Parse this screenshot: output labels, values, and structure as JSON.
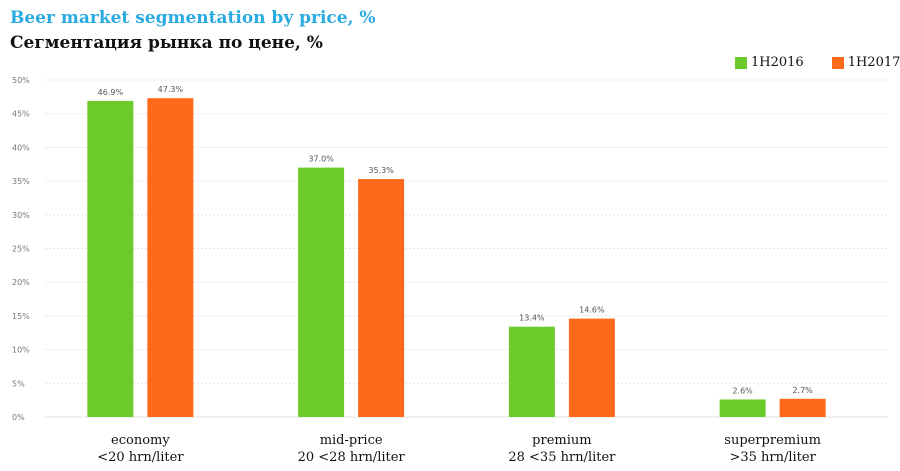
{
  "chart_data": {
    "type": "bar",
    "title": "Beer market segmentation by price, %",
    "subtitle": "Сегментация рынка по цене, %",
    "categories": [
      [
        "economy",
        "<20 hrn/liter"
      ],
      [
        "mid-price",
        "20 <28 hrn/liter"
      ],
      [
        "premium",
        "28 <35 hrn/liter"
      ],
      [
        "superpremium",
        ">35 hrn/liter"
      ]
    ],
    "series": [
      {
        "name": "1H2016",
        "color": "#6ccb2b",
        "values": [
          46.9,
          37.0,
          13.4,
          2.6
        ],
        "labels": [
          "46.9%",
          "37.0%",
          "13.4%",
          "2.6%"
        ]
      },
      {
        "name": "1H2017",
        "color": "#ff6a1a",
        "values": [
          47.3,
          35.3,
          14.6,
          2.7
        ],
        "labels": [
          "47.3%",
          "35.3%",
          "14.6%",
          "2.7%"
        ]
      }
    ],
    "yticks": [
      "0%",
      "5%",
      "10%",
      "15%",
      "20%",
      "25%",
      "30%",
      "35%",
      "40%",
      "45%",
      "50%"
    ],
    "ylim": [
      0,
      50
    ],
    "grid": true,
    "legend": "top-right"
  }
}
